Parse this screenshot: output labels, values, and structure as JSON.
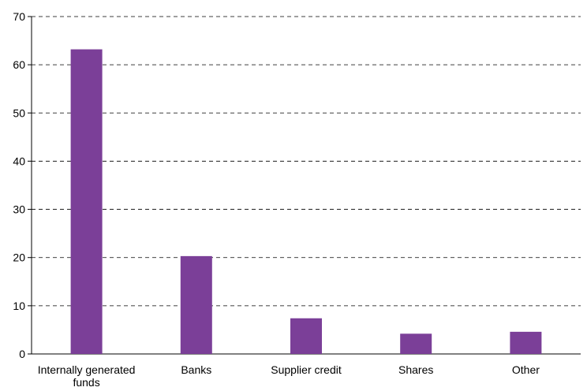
{
  "chart_data": {
    "type": "bar",
    "title": "",
    "xlabel": "",
    "ylabel": "",
    "categories": [
      [
        "Internally generated",
        "funds"
      ],
      [
        "Banks"
      ],
      [
        "Supplier credit"
      ],
      [
        "Shares"
      ],
      [
        "Other"
      ]
    ],
    "values": [
      63.2,
      20.3,
      7.4,
      4.2,
      4.6
    ],
    "ylim": [
      0,
      70
    ],
    "yticks": [
      0,
      10,
      20,
      30,
      40,
      50,
      60,
      70
    ],
    "grid": true,
    "grid_style": "dashed",
    "bar_color": "#7b3f98"
  }
}
